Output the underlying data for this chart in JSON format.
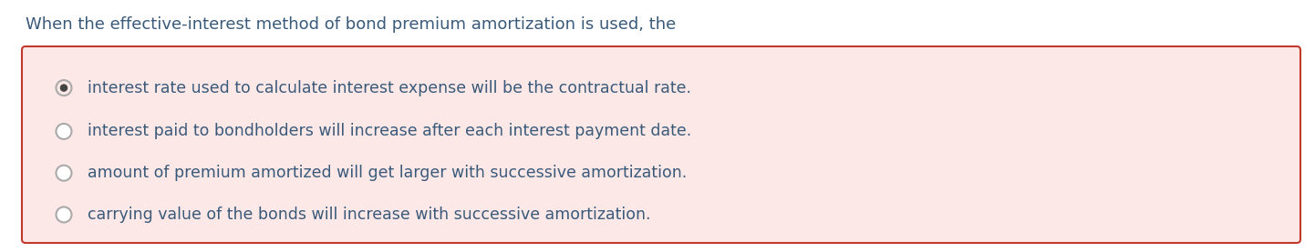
{
  "title": "When the effective-interest method of bond premium amortization is used, the",
  "title_color": "#3a5a7a",
  "title_fontsize": 13.0,
  "box_bg_color": "#fde8e8",
  "box_border_color": "#c0392b",
  "options": [
    "interest rate used to calculate interest expense will be the contractual rate.",
    "interest paid to bondholders will increase after each interest payment date.",
    "amount of premium amortized will get larger with successive amortization.",
    "carrying value of the bonds will increase with successive amortization."
  ],
  "selected_index": 0,
  "option_color": "#3a5a7a",
  "option_fontsize": 12.5,
  "background_color": "#ffffff",
  "fig_width": 14.42,
  "fig_height": 2.77,
  "dpi": 100
}
